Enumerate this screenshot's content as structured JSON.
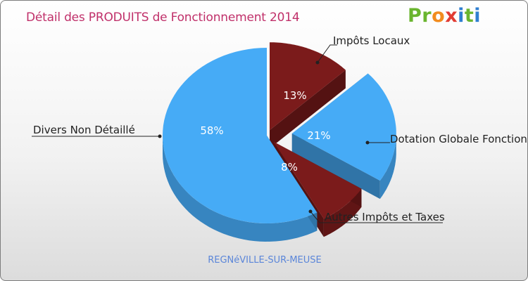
{
  "title": "Détail des PRODUITS de Fonctionnement 2014",
  "logo": {
    "letters": [
      "P",
      "r",
      "o",
      "x",
      "i",
      "t",
      "i"
    ],
    "colors": [
      "#6ab52f",
      "#6ab52f",
      "#f28c1e",
      "#e23c33",
      "#2f7fd1",
      "#6ab52f",
      "#2f7fd1"
    ]
  },
  "footer": "REGNéVILLE-SUR-MEUSE",
  "chart_data": {
    "type": "pie",
    "title": "Détail des PRODUITS de Fonctionnement 2014",
    "slices": [
      {
        "label": "Impôts Locaux",
        "value": 13,
        "percent_label": "13%",
        "color": "#7b1b1b"
      },
      {
        "label": "Dotation Globale Fonctionnement",
        "value": 21,
        "percent_label": "21%",
        "color": "#46abf6"
      },
      {
        "label": "Autres Impôts et Taxes",
        "value": 8,
        "percent_label": "8%",
        "color": "#7b1b1b"
      },
      {
        "label": "Divers Non Détaillé",
        "value": 58,
        "percent_label": "58%",
        "color": "#46abf6"
      }
    ]
  }
}
